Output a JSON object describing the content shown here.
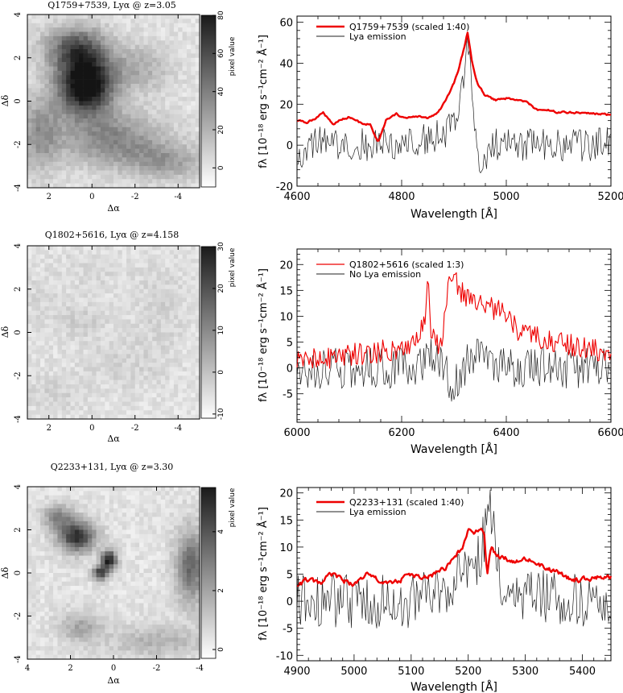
{
  "chart_data": [
    {
      "type": "heatmap",
      "title": "Q1759+7539, Lyα @ z=3.05",
      "xlabel": "Δα",
      "ylabel": "Δδ",
      "xlim": [
        3,
        -5
      ],
      "ylim": [
        -4,
        4
      ],
      "x_ticks": [
        2,
        0,
        -2,
        -4
      ],
      "y_ticks": [
        -4,
        -2,
        0,
        2,
        4
      ],
      "colorbar": {
        "label": "pixel value",
        "range": [
          -10,
          80
        ],
        "ticks": [
          0,
          20,
          40,
          60,
          80
        ]
      },
      "blobs": [
        {
          "x": 0.3,
          "y": 0.8,
          "sx": 0.9,
          "sy": 1.0,
          "amp": 95
        },
        {
          "x": 0.8,
          "y": 2.5,
          "sx": 1.0,
          "sy": 0.7,
          "amp": 45
        },
        {
          "x": -1.0,
          "y": -1.8,
          "sx": 1.6,
          "sy": 0.9,
          "amp": 35
        },
        {
          "x": 2.4,
          "y": -1.5,
          "sx": 0.7,
          "sy": 1.2,
          "amp": 30
        },
        {
          "x": -3.5,
          "y": -2.8,
          "sx": 1.2,
          "sy": 0.6,
          "amp": 25
        },
        {
          "x": -2.2,
          "y": 1.5,
          "sx": 1.0,
          "sy": 0.8,
          "amp": 20
        }
      ]
    },
    {
      "type": "line",
      "xlabel": "Wavelength [Å]",
      "ylabel": "fλ [10⁻¹⁸ erg s⁻¹cm⁻² Å⁻¹]",
      "xlim": [
        4600,
        5200
      ],
      "ylim": [
        -20,
        63
      ],
      "x_ticks": [
        4600,
        4800,
        5000,
        5200
      ],
      "y_ticks": [
        -20,
        0,
        20,
        40,
        60
      ],
      "legend_position": "top-left",
      "series": [
        {
          "name": "Q1759+7539 (scaled 1:40)",
          "color": "#ee0000",
          "kind": "smooth",
          "x": [
            4600,
            4620,
            4640,
            4650,
            4660,
            4670,
            4680,
            4700,
            4720,
            4740,
            4755,
            4770,
            4790,
            4810,
            4830,
            4850,
            4870,
            4885,
            4900,
            4910,
            4920,
            4926,
            4935,
            4945,
            4960,
            4980,
            5000,
            5020,
            5040,
            5060,
            5080,
            5100,
            5120,
            5140,
            5160,
            5180,
            5200
          ],
          "y": [
            12,
            11,
            14,
            16,
            13,
            10,
            12,
            14,
            11,
            10,
            1,
            12,
            15,
            13,
            14,
            13,
            16,
            22,
            30,
            38,
            48,
            55,
            40,
            30,
            24,
            22,
            23,
            22,
            21,
            17,
            17,
            16,
            16,
            16,
            15.5,
            15.2,
            15
          ]
        },
        {
          "name": "Lya emission",
          "color": "#222222",
          "kind": "noisy",
          "x": [
            4600,
            4620,
            4640,
            4660,
            4680,
            4700,
            4720,
            4740,
            4760,
            4780,
            4800,
            4820,
            4840,
            4860,
            4880,
            4895,
            4905,
            4915,
            4922,
            4927,
            4933,
            4940,
            4950,
            4960,
            4980,
            5000,
            5050,
            5100,
            5150,
            5200
          ],
          "y": [
            -6,
            0,
            2,
            1,
            0,
            0,
            1,
            0,
            1,
            0,
            1,
            2,
            3,
            4,
            6,
            8,
            12,
            25,
            45,
            55,
            30,
            5,
            -15,
            -5,
            0,
            0,
            0,
            0,
            0,
            2
          ],
          "noise": 8
        }
      ]
    },
    {
      "type": "heatmap",
      "title": "Q1802+5616, Lyα @ z=4.158",
      "xlabel": "Δα",
      "ylabel": "Δδ",
      "xlim": [
        3,
        -5
      ],
      "ylim": [
        -4,
        4
      ],
      "x_ticks": [
        2,
        0,
        -2,
        -4
      ],
      "y_ticks": [
        -4,
        -2,
        0,
        2,
        4
      ],
      "colorbar": {
        "label": "pixel value",
        "range": [
          -11,
          30
        ],
        "ticks": [
          -10,
          0,
          10,
          20,
          30
        ]
      },
      "blobs": [
        {
          "x": 0.5,
          "y": 0.5,
          "sx": 0.8,
          "sy": 0.6,
          "amp": 4
        },
        {
          "x": -1.5,
          "y": -1.5,
          "sx": 1.2,
          "sy": 0.8,
          "amp": 3
        },
        {
          "x": 1.8,
          "y": -2.8,
          "sx": 1.0,
          "sy": 0.6,
          "amp": 3
        },
        {
          "x": -3.2,
          "y": 1.0,
          "sx": 0.8,
          "sy": 1.4,
          "amp": 3
        },
        {
          "x": 0.0,
          "y": 2.8,
          "sx": 1.4,
          "sy": 0.6,
          "amp": 2
        },
        {
          "x": 2.4,
          "y": 1.5,
          "sx": 0.6,
          "sy": 0.8,
          "amp": 2
        }
      ]
    },
    {
      "type": "line",
      "xlabel": "Wavelength [Å]",
      "ylabel": "fλ [10⁻¹⁸ erg s⁻¹cm⁻² Å⁻¹]",
      "xlim": [
        6000,
        6600
      ],
      "ylim": [
        -10.5,
        23
      ],
      "x_ticks": [
        6000,
        6200,
        6400,
        6600
      ],
      "y_ticks": [
        -5,
        0,
        5,
        10,
        15,
        20
      ],
      "legend_position": "top-left",
      "series": [
        {
          "name": "Q1802+5616 (scaled 1:3)",
          "color": "#ee0000",
          "kind": "noisy",
          "x": [
            6000,
            6050,
            6100,
            6150,
            6200,
            6230,
            6245,
            6250,
            6255,
            6265,
            6275,
            6290,
            6300,
            6310,
            6330,
            6360,
            6390,
            6410,
            6420,
            6450,
            6500,
            6550,
            6600
          ],
          "y": [
            1,
            2,
            2.5,
            3,
            4,
            6,
            10,
            19,
            8,
            5,
            4,
            16,
            18,
            15,
            13,
            12,
            11,
            9,
            7,
            6,
            5,
            4,
            3
          ],
          "noise": 2.2
        },
        {
          "name": "No Lya emission",
          "color": "#222222",
          "kind": "noisy",
          "x": [
            6000,
            6100,
            6200,
            6240,
            6260,
            6280,
            6300,
            6320,
            6340,
            6400,
            6500,
            6600
          ],
          "y": [
            0,
            0,
            0,
            0,
            2,
            0,
            -4,
            0,
            3,
            0,
            0,
            0
          ],
          "noise": 4
        }
      ]
    },
    {
      "type": "heatmap",
      "title": "Q2233+131, Lyα @ z=3.30",
      "xlabel": "Δα",
      "ylabel": "Δδ",
      "xlim": [
        4,
        -4
      ],
      "ylim": [
        -4,
        4
      ],
      "x_ticks": [
        4,
        2,
        0,
        -2,
        -4
      ],
      "y_ticks": [
        -4,
        -2,
        0,
        2,
        4
      ],
      "colorbar": {
        "label": "pixel value",
        "range": [
          -0.3,
          5.5
        ],
        "ticks": [
          0,
          2,
          4
        ]
      },
      "blobs": [
        {
          "x": 1.7,
          "y": 1.7,
          "sx": 0.6,
          "sy": 0.5,
          "amp": 4.5
        },
        {
          "x": 2.6,
          "y": 2.6,
          "sx": 0.5,
          "sy": 0.4,
          "amp": 2.2
        },
        {
          "x": 0.2,
          "y": 0.6,
          "sx": 0.25,
          "sy": 0.3,
          "amp": 5
        },
        {
          "x": 0.6,
          "y": 0.0,
          "sx": 0.25,
          "sy": 0.25,
          "amp": 4
        },
        {
          "x": -3.6,
          "y": 0.3,
          "sx": 0.5,
          "sy": 1.2,
          "amp": 3
        },
        {
          "x": 1.5,
          "y": -2.5,
          "sx": 0.7,
          "sy": 0.5,
          "amp": 1.5
        },
        {
          "x": -2.0,
          "y": -3.2,
          "sx": 1.5,
          "sy": 0.5,
          "amp": 1.2
        }
      ]
    },
    {
      "type": "line",
      "xlabel": "Wavelength [Å]",
      "ylabel": "fλ [10⁻¹⁸ erg s⁻¹cm⁻² Å⁻¹]",
      "xlim": [
        4900,
        5450
      ],
      "ylim": [
        -11,
        21
      ],
      "x_ticks": [
        4900,
        5000,
        5100,
        5200,
        5300,
        5400
      ],
      "y_ticks": [
        -10,
        -5,
        0,
        5,
        10,
        15,
        20
      ],
      "legend_position": "top-left",
      "series": [
        {
          "name": "Q2233+131 (scaled 1:40)",
          "color": "#ee0000",
          "kind": "smooth",
          "x": [
            4900,
            4920,
            4940,
            4960,
            4980,
            5000,
            5020,
            5040,
            5060,
            5080,
            5100,
            5120,
            5140,
            5160,
            5175,
            5190,
            5200,
            5210,
            5220,
            5228,
            5233,
            5240,
            5250,
            5260,
            5280,
            5300,
            5320,
            5340,
            5360,
            5380,
            5400,
            5420,
            5450
          ],
          "y": [
            3,
            4,
            3,
            5,
            4,
            3,
            5,
            4,
            3,
            4,
            5,
            4,
            5,
            6,
            8,
            10,
            13,
            12,
            13.5,
            13,
            5,
            10,
            8,
            8,
            7.5,
            8,
            7,
            6,
            5,
            4,
            4,
            4.5,
            4.5
          ]
        },
        {
          "name": "Lya emission",
          "color": "#222222",
          "kind": "noisy",
          "x": [
            4900,
            5000,
            5100,
            5150,
            5200,
            5220,
            5235,
            5240,
            5250,
            5260,
            5300,
            5450
          ],
          "y": [
            0,
            0,
            0,
            2,
            5,
            8,
            15,
            17,
            8,
            3,
            1,
            0
          ],
          "noise": 5
        }
      ]
    }
  ]
}
